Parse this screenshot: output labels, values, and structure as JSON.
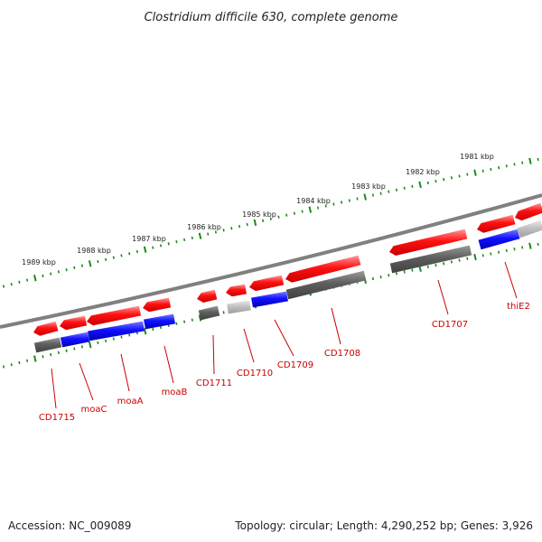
{
  "title": "Clostridium difficile 630, complete genome",
  "footer": {
    "accession": "Accession: NC_009089",
    "summary": "Topology: circular; Length: 4,290,252 bp; Genes: 3,926"
  },
  "ruler": {
    "labels": [
      "1981 kbp",
      "1982 kbp",
      "1983 kbp",
      "1984 kbp",
      "1985 kbp",
      "1986 kbp",
      "1987 kbp",
      "1988 kbp",
      "1989 kbp"
    ]
  },
  "genes": [
    {
      "name": "thiE2"
    },
    {
      "name": "CD1707"
    },
    {
      "name": "CD1708"
    },
    {
      "name": "CD1709"
    },
    {
      "name": "CD1710"
    },
    {
      "name": "CD1711"
    },
    {
      "name": "moaB"
    },
    {
      "name": "moaA"
    },
    {
      "name": "moaC"
    },
    {
      "name": "CD1715"
    }
  ],
  "colors": {
    "forward_strand": "#ff0000",
    "reverse_strand": "#0000ff",
    "gray_feature": "#666666",
    "light_gray_feature": "#bbbbbb",
    "backbone": "#808080",
    "ticks": "#1a8a1a",
    "labels": "#cc0000"
  }
}
